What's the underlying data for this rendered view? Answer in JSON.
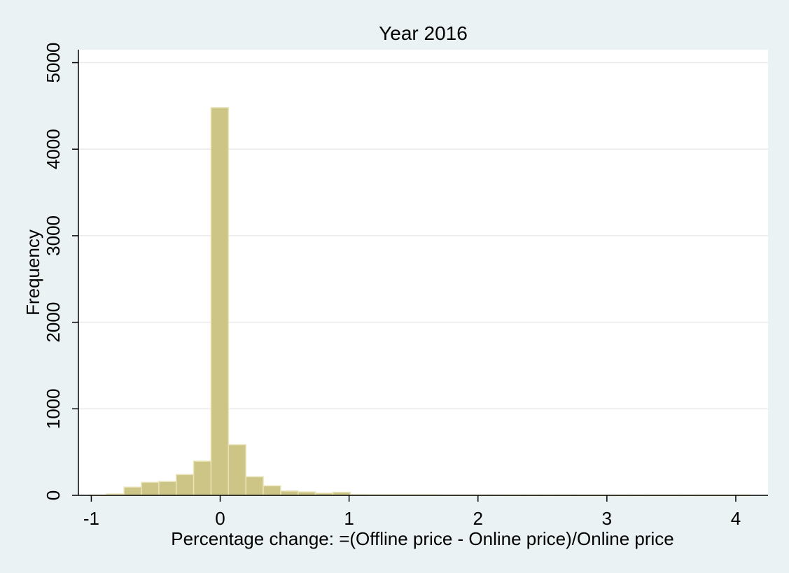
{
  "chart_data": {
    "type": "bar",
    "title": "Year 2016",
    "xlabel": "Percentage change: =(Offline price - Online price)/Online price",
    "ylabel": "Frequency",
    "xlim": [
      -1.1,
      4.25
    ],
    "ylim": [
      0,
      5150
    ],
    "xticks": [
      -1,
      0,
      1,
      2,
      3,
      4
    ],
    "yticks": [
      0,
      1000,
      2000,
      3000,
      4000,
      5000
    ],
    "bin_width": 0.135,
    "grid": "horizontal",
    "legend": "none",
    "bar_color": "#cdc585",
    "bar_edge_color": "#e8e3b8",
    "plot_background": "#ffffff",
    "page_background": "#eaf2f3",
    "bins": [
      {
        "start": -1.016,
        "count": 3
      },
      {
        "start": -0.881,
        "count": 15
      },
      {
        "start": -0.746,
        "count": 95
      },
      {
        "start": -0.611,
        "count": 150
      },
      {
        "start": -0.476,
        "count": 160
      },
      {
        "start": -0.341,
        "count": 240
      },
      {
        "start": -0.206,
        "count": 395
      },
      {
        "start": -0.071,
        "count": 4480
      },
      {
        "start": 0.064,
        "count": 585
      },
      {
        "start": 0.199,
        "count": 215
      },
      {
        "start": 0.334,
        "count": 110
      },
      {
        "start": 0.469,
        "count": 50
      },
      {
        "start": 0.604,
        "count": 40
      },
      {
        "start": 0.739,
        "count": 25
      },
      {
        "start": 0.874,
        "count": 35
      },
      {
        "start": 1.009,
        "count": 8
      },
      {
        "start": 1.144,
        "count": 6
      },
      {
        "start": 1.279,
        "count": 5
      },
      {
        "start": 1.414,
        "count": 5
      },
      {
        "start": 1.549,
        "count": 5
      },
      {
        "start": 1.684,
        "count": 4
      },
      {
        "start": 1.819,
        "count": 4
      },
      {
        "start": 1.954,
        "count": 4
      },
      {
        "start": 2.089,
        "count": 4
      },
      {
        "start": 2.224,
        "count": 3
      },
      {
        "start": 2.359,
        "count": 3
      },
      {
        "start": 2.494,
        "count": 3
      },
      {
        "start": 2.629,
        "count": 3
      },
      {
        "start": 2.764,
        "count": 2
      },
      {
        "start": 2.899,
        "count": 2
      },
      {
        "start": 3.034,
        "count": 2
      },
      {
        "start": 3.169,
        "count": 2
      },
      {
        "start": 3.304,
        "count": 2
      },
      {
        "start": 3.439,
        "count": 2
      },
      {
        "start": 3.574,
        "count": 2
      },
      {
        "start": 3.709,
        "count": 2
      },
      {
        "start": 3.844,
        "count": 2
      },
      {
        "start": 3.979,
        "count": 3
      }
    ]
  }
}
